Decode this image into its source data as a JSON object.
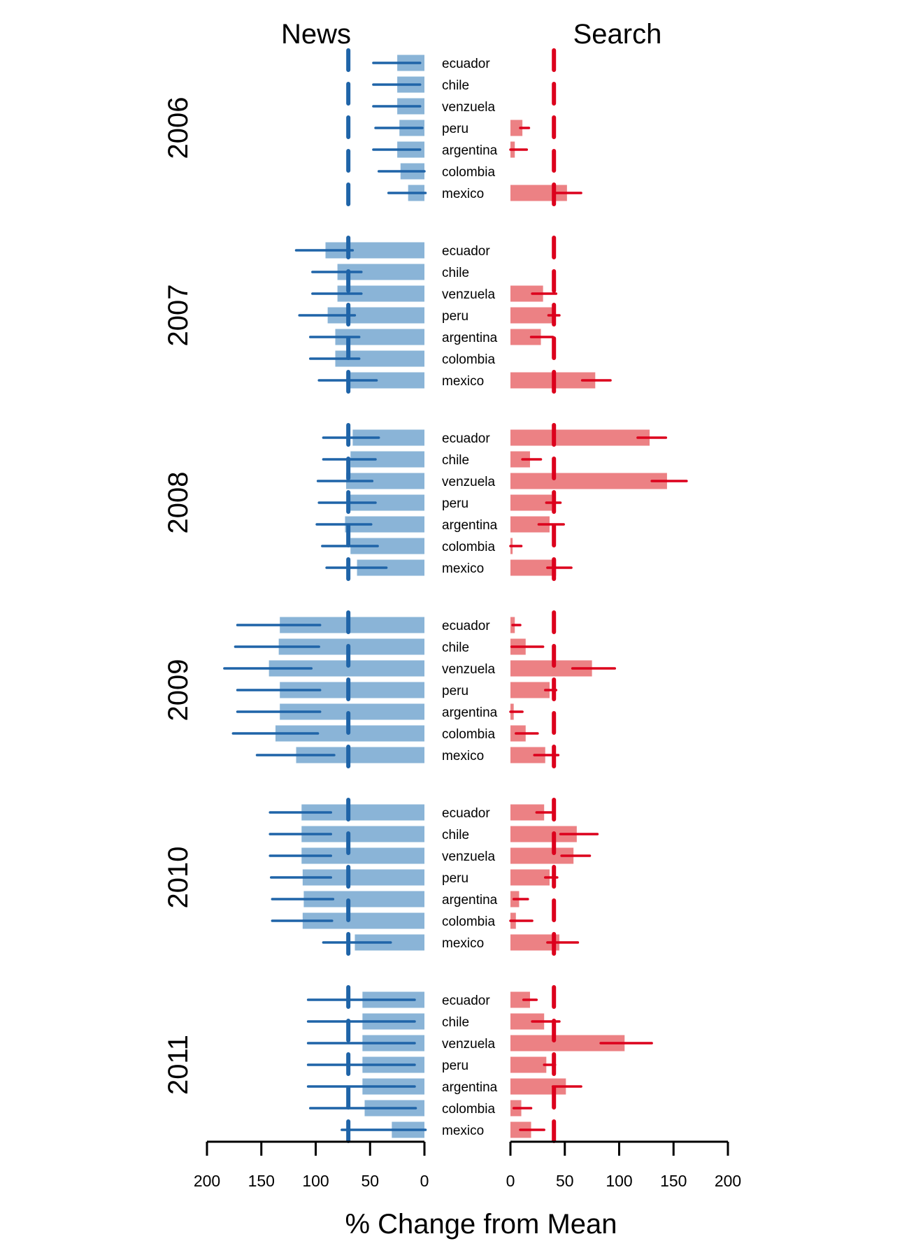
{
  "chart_data": {
    "type": "bar",
    "orientation": "horizontal",
    "xlabel": "% Change from Mean",
    "panels": [
      {
        "name": "News",
        "direction": "leftward",
        "xlim": [
          0,
          200
        ],
        "ticks": [
          200,
          150,
          100,
          50,
          0
        ],
        "reference_line": 70,
        "color_bar": "#8ab4d7",
        "color_line": "#1f64a8"
      },
      {
        "name": "Search",
        "direction": "rightward",
        "xlim": [
          0,
          200
        ],
        "ticks": [
          0,
          50,
          100,
          150,
          200
        ],
        "reference_line": 40,
        "color_bar": "#ec8184",
        "color_line": "#dc001c"
      }
    ],
    "countries": [
      "ecuador",
      "chile",
      "venzuela",
      "peru",
      "argentina",
      "colombia",
      "mexico"
    ],
    "groups": [
      {
        "year": "2006",
        "news": {
          "values": [
            25,
            25,
            25,
            23,
            25,
            22,
            15
          ],
          "err_low": [
            4,
            4,
            4,
            2,
            4,
            0,
            -1
          ],
          "err_high": [
            47,
            47,
            47,
            45,
            47,
            42,
            33
          ]
        },
        "search": {
          "values": [
            null,
            null,
            null,
            11,
            4,
            null,
            52
          ],
          "err_low": [
            null,
            null,
            null,
            9,
            0,
            null,
            42
          ],
          "err_high": [
            null,
            null,
            null,
            17,
            15,
            null,
            65
          ]
        }
      },
      {
        "year": "2007",
        "news": {
          "values": [
            91,
            80,
            80,
            89,
            82,
            82,
            70
          ],
          "err_low": [
            66,
            58,
            58,
            64,
            60,
            60,
            44
          ],
          "err_high": [
            118,
            103,
            103,
            115,
            105,
            105,
            97
          ]
        },
        "search": {
          "values": [
            null,
            null,
            30,
            40,
            28,
            null,
            78
          ],
          "err_low": [
            null,
            null,
            20,
            35,
            19,
            null,
            66
          ],
          "err_high": [
            null,
            null,
            42,
            45,
            39,
            null,
            92
          ]
        }
      },
      {
        "year": "2008",
        "news": {
          "values": [
            66,
            68,
            72,
            70,
            73,
            68,
            62
          ],
          "err_low": [
            42,
            45,
            48,
            45,
            49,
            43,
            35
          ],
          "err_high": [
            93,
            93,
            98,
            97,
            99,
            94,
            90
          ]
        },
        "search": {
          "values": [
            128,
            18,
            144,
            38,
            36,
            2,
            42
          ],
          "err_low": [
            117,
            11,
            130,
            33,
            26,
            0,
            34
          ],
          "err_high": [
            143,
            28,
            162,
            46,
            49,
            10,
            56
          ]
        }
      },
      {
        "year": "2009",
        "news": {
          "values": [
            133,
            134,
            143,
            133,
            133,
            137,
            118
          ],
          "err_low": [
            96,
            97,
            104,
            96,
            96,
            98,
            83
          ],
          "err_high": [
            172,
            174,
            184,
            172,
            172,
            176,
            154
          ]
        },
        "search": {
          "values": [
            4,
            14,
            75,
            36,
            3,
            14,
            32
          ],
          "err_low": [
            2,
            1,
            57,
            32,
            0,
            5,
            22
          ],
          "err_high": [
            9,
            30,
            96,
            42,
            11,
            25,
            44
          ]
        }
      },
      {
        "year": "2010",
        "news": {
          "values": [
            113,
            113,
            113,
            112,
            111,
            112,
            64
          ],
          "err_low": [
            86,
            86,
            86,
            86,
            84,
            85,
            31
          ],
          "err_high": [
            142,
            142,
            142,
            141,
            140,
            140,
            93
          ]
        },
        "search": {
          "values": [
            31,
            61,
            58,
            36,
            8,
            5,
            45
          ],
          "err_low": [
            24,
            46,
            47,
            32,
            3,
            0,
            34
          ],
          "err_high": [
            39,
            80,
            73,
            43,
            16,
            20,
            62
          ]
        }
      },
      {
        "year": "2011",
        "news": {
          "values": [
            57,
            57,
            57,
            57,
            57,
            55,
            30
          ],
          "err_low": [
            9,
            9,
            9,
            9,
            9,
            8,
            -1
          ],
          "err_high": [
            107,
            107,
            107,
            107,
            107,
            105,
            76
          ]
        },
        "search": {
          "values": [
            18,
            31,
            105,
            33,
            51,
            10,
            19
          ],
          "err_low": [
            12,
            20,
            83,
            31,
            39,
            3,
            9
          ],
          "err_high": [
            24,
            45,
            130,
            41,
            65,
            19,
            31
          ]
        }
      }
    ]
  }
}
